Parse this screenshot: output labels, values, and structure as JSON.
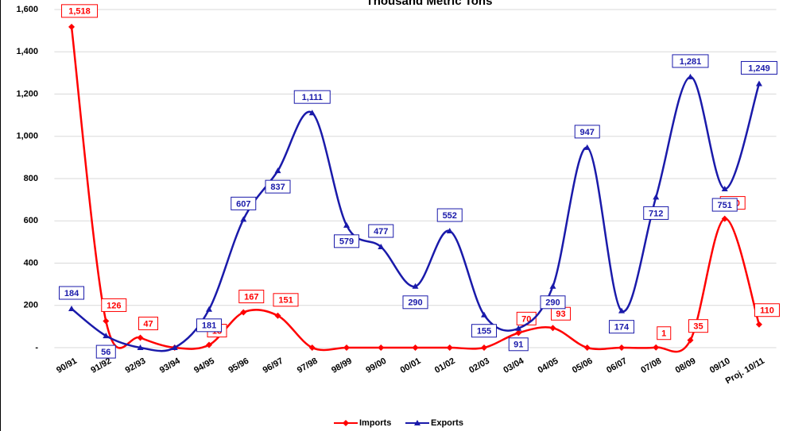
{
  "chart_data": {
    "type": "line",
    "title": "Thousand Metric Tons",
    "categories": [
      "90/91",
      "91/92",
      "92/93",
      "93/94",
      "94/95",
      "95/96",
      "96/97",
      "97/98",
      "98/99",
      "99/00",
      "00/01",
      "01/02",
      "02/03",
      "03/04",
      "04/05",
      "05/06",
      "06/07",
      "07/08",
      "08/09",
      "09/10",
      "Proj. 10/11"
    ],
    "series": [
      {
        "name": "Imports",
        "color": "#ff0000",
        "marker": "diamond",
        "values": [
          1518,
          126,
          47,
          0,
          13,
          167,
          151,
          0,
          0,
          0,
          0,
          0,
          0,
          70,
          93,
          0,
          0,
          1,
          35,
          610,
          110
        ],
        "value_labels": [
          "1,518",
          "126",
          "47",
          null,
          "13",
          "167",
          "151",
          null,
          null,
          null,
          null,
          null,
          null,
          "70",
          "93",
          null,
          null,
          "1",
          "35",
          "610",
          "110"
        ]
      },
      {
        "name": "Exports",
        "color": "#1a1aaa",
        "marker": "triangle",
        "values": [
          184,
          56,
          0,
          0,
          181,
          607,
          837,
          1111,
          579,
          477,
          290,
          552,
          155,
          91,
          290,
          947,
          174,
          712,
          1281,
          751,
          1249
        ],
        "value_labels": [
          "184",
          "56",
          null,
          null,
          "181",
          "607",
          "837",
          "1,111",
          "579",
          "477",
          "290",
          "552",
          "155",
          "91",
          "290",
          "947",
          "174",
          "712",
          "1,281",
          "751",
          "1,249"
        ]
      }
    ],
    "ylim": [
      0,
      1600
    ],
    "yticks": [
      {
        "value": 0,
        "label": "-"
      },
      200,
      400,
      600,
      800,
      {
        "value": 1000,
        "label": "1,000"
      },
      {
        "value": 1200,
        "label": "1,200"
      },
      {
        "value": 1400,
        "label": "1,400"
      },
      {
        "value": 1600,
        "label": "1,600"
      }
    ],
    "grid": true,
    "legend": "bottom"
  }
}
